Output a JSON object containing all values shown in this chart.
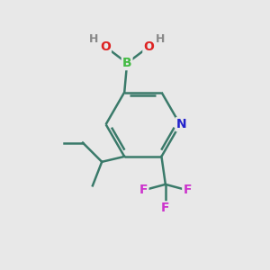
{
  "bg_color": "#e8e8e8",
  "bond_color": "#3a7a6a",
  "atom_colors": {
    "B": "#44bb44",
    "O": "#dd2222",
    "N": "#2222cc",
    "F": "#cc33cc",
    "H": "#888888",
    "C": "#3a7a6a"
  },
  "figsize": [
    3.0,
    3.0
  ],
  "dpi": 100
}
